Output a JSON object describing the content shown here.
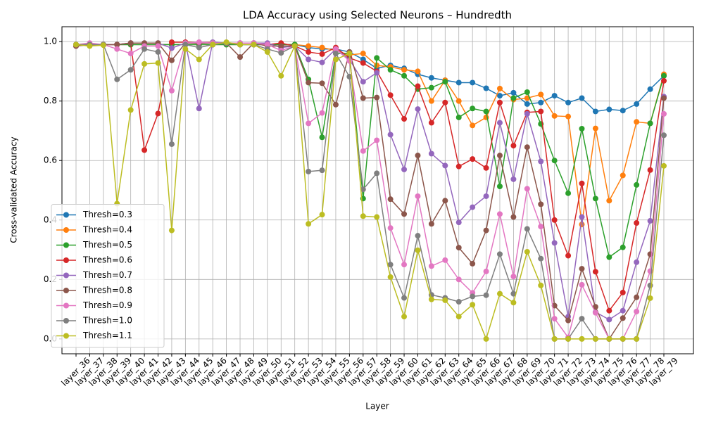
{
  "chart_data": {
    "type": "line",
    "title": "LDA Accuracy using Selected Neurons – Hundredth",
    "x_label": "Layer",
    "y_label": "Cross-validated Accuracy",
    "categories": [
      "layer_36",
      "layer_37",
      "layer_38",
      "layer_39",
      "layer_40",
      "layer_41",
      "layer_42",
      "layer_43",
      "layer_44",
      "layer_45",
      "layer_46",
      "layer_47",
      "layer_48",
      "layer_49",
      "layer_50",
      "layer_51",
      "layer_52",
      "layer_53",
      "layer_54",
      "layer_55",
      "layer_56",
      "layer_57",
      "layer_58",
      "layer_59",
      "layer_60",
      "layer_61",
      "layer_62",
      "layer_63",
      "layer_64",
      "layer_65",
      "layer_66",
      "layer_67",
      "layer_68",
      "layer_69",
      "layer_70",
      "layer_71",
      "layer_72",
      "layer_73",
      "layer_74",
      "layer_75",
      "layer_76",
      "layer_77",
      "layer_78",
      "layer_79"
    ],
    "ylim": [
      -0.05,
      1.05
    ],
    "yticks": [
      {
        "value": 0,
        "label": "0.0"
      },
      0.2,
      0.4,
      0.6,
      0.8,
      {
        "value": 1,
        "label": "1.0"
      }
    ],
    "grid": true,
    "legend": "lower left",
    "series": [
      {
        "name": "Thresh=0.3",
        "color": "#1f77b4",
        "values": [
          0.99,
          0.99,
          0.99,
          0.99,
          0.99,
          0.99,
          0.99,
          0.99,
          0.99,
          0.99,
          0.99,
          0.99,
          0.99,
          0.99,
          0.99,
          0.99,
          0.99,
          0.98,
          0.975,
          0.975,
          0.965,
          0.94,
          0.91,
          0.92,
          0.91,
          0.89,
          0.878,
          0.87,
          0.862,
          0.862,
          0.843,
          0.818,
          0.828,
          0.79,
          0.795,
          0.818,
          0.795,
          0.81,
          0.765,
          0.772,
          0.768,
          0.79,
          0.84,
          0.885
        ]
      },
      {
        "name": "Thresh=0.4",
        "color": "#ff7f0e",
        "values": [
          0.99,
          0.99,
          0.99,
          0.99,
          0.99,
          0.99,
          0.99,
          0.99,
          0.99,
          0.99,
          0.99,
          0.99,
          0.99,
          0.99,
          0.99,
          0.99,
          0.99,
          0.985,
          0.98,
          0.97,
          0.955,
          0.96,
          0.92,
          0.915,
          0.905,
          0.9,
          0.8,
          0.87,
          0.8,
          0.718,
          0.745,
          0.842,
          0.805,
          0.81,
          0.822,
          0.75,
          0.748,
          0.385,
          0.708,
          0.465,
          0.55,
          0.73,
          0.725,
          0.89
        ]
      },
      {
        "name": "Thresh=0.5",
        "color": "#2ca02c",
        "values": [
          0.99,
          0.99,
          0.99,
          0.99,
          0.99,
          0.99,
          0.99,
          0.99,
          0.99,
          0.99,
          0.99,
          0.99,
          0.99,
          0.99,
          0.99,
          0.99,
          0.99,
          0.873,
          0.678,
          0.96,
          0.96,
          0.472,
          0.945,
          0.905,
          0.885,
          0.84,
          0.845,
          0.865,
          0.745,
          0.775,
          0.765,
          0.513,
          0.81,
          0.83,
          0.723,
          0.6,
          0.49,
          0.707,
          0.472,
          0.275,
          0.308,
          0.518,
          0.725,
          0.885
        ]
      },
      {
        "name": "Thresh=0.6",
        "color": "#d62728",
        "values": [
          0.985,
          0.99,
          0.99,
          0.99,
          0.995,
          0.635,
          0.758,
          0.998,
          0.998,
          0.997,
          0.997,
          0.995,
          0.995,
          0.995,
          0.99,
          0.995,
          0.985,
          0.965,
          0.958,
          0.98,
          0.945,
          0.928,
          0.9,
          0.82,
          0.74,
          0.85,
          0.727,
          0.795,
          0.58,
          0.605,
          0.575,
          0.795,
          0.65,
          0.762,
          0.765,
          0.4,
          0.28,
          0.523,
          0.226,
          0.095,
          0.156,
          0.39,
          0.568,
          0.868
        ]
      },
      {
        "name": "Thresh=0.7",
        "color": "#9467bd",
        "values": [
          0.99,
          0.99,
          0.99,
          0.99,
          0.995,
          0.995,
          0.995,
          0.978,
          0.995,
          0.775,
          0.998,
          0.995,
          0.995,
          0.995,
          0.995,
          0.98,
          0.985,
          0.94,
          0.93,
          0.975,
          0.94,
          0.865,
          0.895,
          0.687,
          0.57,
          0.773,
          0.623,
          0.583,
          0.392,
          0.443,
          0.48,
          0.727,
          0.537,
          0.757,
          0.597,
          0.323,
          0.075,
          0.41,
          0.09,
          0.065,
          0.095,
          0.258,
          0.397,
          0.815
        ]
      },
      {
        "name": "Thresh=0.8",
        "color": "#8c564b",
        "values": [
          0.985,
          0.99,
          0.99,
          0.99,
          0.995,
          0.995,
          0.995,
          0.937,
          0.995,
          0.995,
          0.995,
          0.995,
          0.948,
          0.995,
          0.985,
          0.985,
          0.985,
          0.862,
          0.86,
          0.788,
          0.965,
          0.81,
          0.812,
          0.47,
          0.42,
          0.617,
          0.387,
          0.465,
          0.307,
          0.253,
          0.365,
          0.617,
          0.41,
          0.645,
          0.453,
          0.112,
          0.062,
          0.236,
          0.108,
          0.0,
          0.07,
          0.14,
          0.285,
          0.81
        ]
      },
      {
        "name": "Thresh=0.9",
        "color": "#e377c2",
        "values": [
          0.99,
          0.995,
          0.99,
          0.975,
          0.96,
          0.985,
          0.985,
          0.835,
          0.995,
          0.998,
          0.995,
          0.995,
          0.995,
          0.995,
          0.99,
          0.97,
          0.985,
          0.725,
          0.76,
          0.975,
          0.935,
          0.632,
          0.668,
          0.373,
          0.25,
          0.48,
          0.245,
          0.265,
          0.2,
          0.155,
          0.227,
          0.42,
          0.21,
          0.505,
          0.378,
          0.068,
          0.005,
          0.182,
          0.088,
          0.0,
          0.0,
          0.092,
          0.228,
          0.757
        ]
      },
      {
        "name": "Thresh=1.0",
        "color": "#7f7f7f",
        "values": [
          0.99,
          0.99,
          0.99,
          0.873,
          0.905,
          0.975,
          0.965,
          0.655,
          0.99,
          0.98,
          0.99,
          0.995,
          0.99,
          0.99,
          0.975,
          0.962,
          0.985,
          0.563,
          0.567,
          0.96,
          0.882,
          0.503,
          0.557,
          0.25,
          0.138,
          0.347,
          0.148,
          0.138,
          0.125,
          0.143,
          0.147,
          0.285,
          0.152,
          0.37,
          0.27,
          0.0,
          0.0,
          0.068,
          0.0,
          0.0,
          0.0,
          0.0,
          0.18,
          0.685
        ]
      },
      {
        "name": "Thresh=1.1",
        "color": "#bcbd22",
        "values": [
          0.99,
          0.985,
          0.988,
          0.455,
          0.77,
          0.925,
          0.928,
          0.365,
          0.975,
          0.94,
          0.99,
          0.998,
          0.99,
          0.99,
          0.965,
          0.885,
          0.985,
          0.387,
          0.418,
          0.94,
          0.96,
          0.413,
          0.41,
          0.208,
          0.075,
          0.298,
          0.133,
          0.13,
          0.075,
          0.115,
          0.0,
          0.152,
          0.122,
          0.293,
          0.18,
          0.0,
          0.0,
          0.0,
          0.0,
          0.0,
          0.0,
          0.0,
          0.137,
          0.582
        ]
      }
    ]
  }
}
